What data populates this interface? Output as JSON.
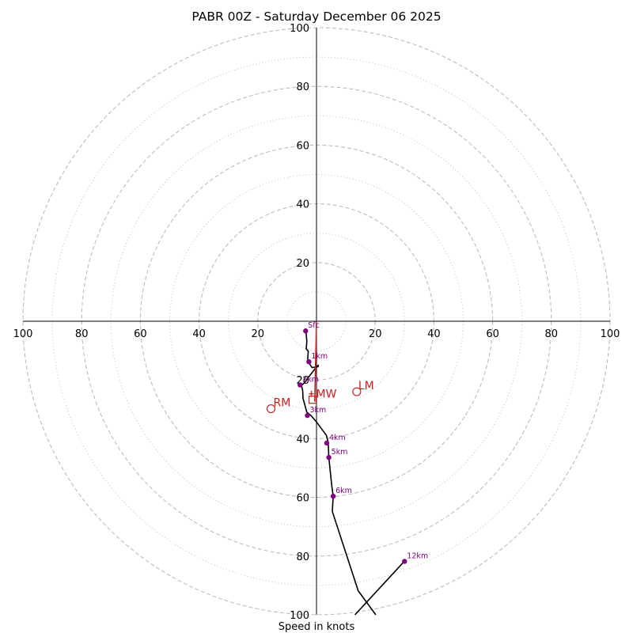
{
  "chart_data": {
    "type": "hodograph",
    "title": "PABR 00Z - Saturday December 06 2025",
    "xlabel": "Speed in knots",
    "units": "knots",
    "ring_major": [
      20,
      40,
      60,
      80,
      100
    ],
    "ring_minor": [
      10,
      30,
      50,
      70,
      90
    ],
    "ticks": {
      "top": [
        "20",
        "40",
        "60",
        "80",
        "100"
      ],
      "left": [
        "100",
        "80",
        "60",
        "40",
        "20"
      ],
      "right": [
        "20",
        "40",
        "60",
        "80",
        "100"
      ],
      "bottom": [
        "20",
        "40",
        "60",
        "80",
        "100"
      ]
    },
    "trace": {
      "color": "#000000",
      "points": [
        {
          "u": -3.6,
          "v": -3.3
        },
        {
          "u": -3.3,
          "v": -6.8
        },
        {
          "u": -3.5,
          "v": -9.4
        },
        {
          "u": -2.8,
          "v": -10.2
        },
        {
          "u": -3.0,
          "v": -12.8
        },
        {
          "u": -2.6,
          "v": -14.2
        },
        {
          "u": -1.5,
          "v": -15.8
        },
        {
          "u": 0.5,
          "v": -15.5
        },
        {
          "u": 0.6,
          "v": -15.0
        },
        {
          "u": -0.5,
          "v": -16.2
        },
        {
          "u": -2.3,
          "v": -18.5
        },
        {
          "u": -3.8,
          "v": -20.6
        },
        {
          "u": -5.1,
          "v": -21.9
        },
        {
          "u": -4.7,
          "v": -23.8
        },
        {
          "u": -4.6,
          "v": -26.2
        },
        {
          "u": -3.3,
          "v": -31.0
        },
        {
          "u": -1.9,
          "v": -32.1
        },
        {
          "u": 0.0,
          "v": -34.3
        },
        {
          "u": 3.4,
          "v": -38.9
        },
        {
          "u": 4.0,
          "v": -41.4
        },
        {
          "u": 4.2,
          "v": -46.3
        },
        {
          "u": 4.7,
          "v": -51.2
        },
        {
          "u": 5.2,
          "v": -56.0
        },
        {
          "u": 5.7,
          "v": -59.6
        },
        {
          "u": 5.4,
          "v": -64.8
        },
        {
          "u": 14.2,
          "v": -91.8
        },
        {
          "u": 20.2,
          "v": -100.0
        }
      ]
    },
    "trace_upper": {
      "color": "#000000",
      "points": [
        {
          "u": 29.9,
          "v": -81.8
        },
        {
          "u": 13.1,
          "v": -100.0
        }
      ]
    },
    "levels": [
      {
        "label": "Sfc",
        "u": -3.7,
        "v": -3.3
      },
      {
        "label": "1km",
        "u": -2.6,
        "v": -13.8
      },
      {
        "label": "2km",
        "u": -5.6,
        "v": -21.7
      },
      {
        "label": "3km",
        "u": -3.1,
        "v": -32.1
      },
      {
        "label": "4km",
        "u": 3.5,
        "v": -41.5
      },
      {
        "label": "5km",
        "u": 4.2,
        "v": -46.4
      },
      {
        "label": "6km",
        "u": 5.7,
        "v": -59.6
      },
      {
        "label": "12km",
        "u": 30.0,
        "v": -81.8
      }
    ],
    "level_color": "#800080",
    "storm_motion": {
      "color": "#cc2222",
      "vector": {
        "u": -0.6,
        "v": -27.4
      },
      "bunkers_right": {
        "label": "RM",
        "u": -15.5,
        "v": -29.8
      },
      "bunkers_left": {
        "label": "LM",
        "u": 13.7,
        "v": -24.0
      },
      "mean_wind": {
        "label": "MW",
        "u": -1.2,
        "v": -26.6
      }
    }
  }
}
